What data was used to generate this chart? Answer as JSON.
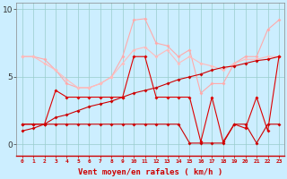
{
  "x": [
    0,
    1,
    2,
    3,
    4,
    5,
    6,
    7,
    8,
    9,
    10,
    11,
    12,
    13,
    14,
    15,
    16,
    17,
    18,
    19,
    20,
    21,
    22,
    23
  ],
  "line_light1": [
    6.5,
    6.5,
    6.3,
    5.5,
    4.5,
    4.2,
    4.2,
    4.5,
    5.0,
    6.5,
    9.2,
    9.3,
    7.5,
    7.3,
    6.5,
    7.0,
    3.8,
    4.5,
    4.5,
    6.0,
    6.5,
    6.5,
    8.5,
    9.2
  ],
  "line_light2": [
    6.5,
    6.5,
    6.0,
    5.5,
    4.8,
    4.2,
    4.2,
    4.5,
    5.0,
    6.0,
    7.0,
    7.2,
    6.5,
    7.0,
    6.0,
    6.5,
    6.0,
    5.8,
    5.5,
    6.0,
    6.3,
    6.3,
    6.5,
    6.5
  ],
  "line_diag_up": [
    1.0,
    1.2,
    1.5,
    2.0,
    2.2,
    2.5,
    2.8,
    3.0,
    3.2,
    3.5,
    3.8,
    4.0,
    4.2,
    4.5,
    4.8,
    5.0,
    5.2,
    5.5,
    5.7,
    5.8,
    6.0,
    6.2,
    6.3,
    6.5
  ],
  "line_jagged": [
    1.5,
    1.5,
    1.5,
    4.0,
    3.5,
    3.5,
    3.5,
    3.5,
    3.5,
    3.5,
    6.5,
    6.5,
    3.5,
    3.5,
    3.5,
    3.5,
    0.2,
    3.5,
    0.2,
    1.5,
    1.2,
    3.5,
    1.0,
    6.5
  ],
  "line_flat": [
    1.5,
    1.5,
    1.5,
    1.5,
    1.5,
    1.5,
    1.5,
    1.5,
    1.5,
    1.5,
    1.5,
    1.5,
    1.5,
    1.5,
    1.5,
    0.1,
    0.1,
    0.1,
    0.1,
    1.5,
    1.5,
    0.1,
    1.5,
    1.5
  ],
  "bg_color": "#cceeff",
  "grid_color": "#99cccc",
  "color_light1": "#ffaaaa",
  "color_light2": "#ffbbbb",
  "color_dark1": "#dd0000",
  "color_dark2": "#cc0000",
  "color_dark3": "#cc0000",
  "xlabel": "Vent moyen/en rafales ( km/h )",
  "yticks": [
    0,
    5,
    10
  ],
  "xlim": [
    0,
    23
  ],
  "ylim": [
    -0.8,
    10.5
  ],
  "figsize": [
    3.2,
    2.0
  ],
  "dpi": 100
}
